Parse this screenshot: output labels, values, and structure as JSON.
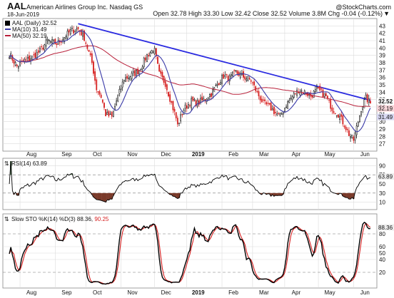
{
  "header": {
    "ticker": "AAL",
    "company": "American Airlines Group Inc.  Nasdaq GS",
    "date": "18-Jun-2019",
    "watermark": "@StockCharts.com",
    "quote": "Open 32.78  High 33.30  Low 32.42  Close 32.52  Volume 3.8M  Chg -0.04 (-0.12%)",
    "change_symbol": "▼"
  },
  "colors": {
    "up": "#000000",
    "down": "#d62020",
    "ma10": "#3a3aa8",
    "ma50": "#b8203a",
    "trendline": "#2a2ae0",
    "rsi": "#000000",
    "rsi_fill": "#7a3a2a",
    "sto_k": "#000000",
    "sto_d": "#d62020",
    "grid": "#dcdcdc"
  },
  "chart_data": [
    {
      "type": "candlestick",
      "panel": "price",
      "legend_title": "AAL (Daily) 32.52",
      "legend": [
        {
          "label": "MA(10) 31.49",
          "color": "#3a3aa8"
        },
        {
          "label": "MA(50) 32.19",
          "color": "#b8203a"
        }
      ],
      "ylim": [
        26,
        44
      ],
      "y_ticks": [
        "27",
        "28",
        "29",
        "30",
        "31",
        "32",
        "33",
        "34",
        "35",
        "36",
        "37",
        "38",
        "39",
        "40",
        "41",
        "42",
        "43"
      ],
      "last_value_labels": [
        "32.52",
        "32.19",
        "31.49"
      ],
      "x_labels": [
        "Aug",
        "Sep",
        "Oct",
        "Nov",
        "Dec",
        "2019",
        "Feb",
        "Mar",
        "Apr",
        "May",
        "Jun"
      ],
      "trendline": {
        "start": {
          "date": "2018-09-24",
          "value": 43.3
        },
        "end": {
          "date": "2019-06-18",
          "value": 32.9
        }
      },
      "anchors_close": [
        [
          "2018-07-23",
          39.2
        ],
        [
          "2018-07-30",
          37.5
        ],
        [
          "2018-08-06",
          38.3
        ],
        [
          "2018-08-13",
          38.7
        ],
        [
          "2018-08-20",
          39.6
        ],
        [
          "2018-08-27",
          41.0
        ],
        [
          "2018-09-04",
          40.6
        ],
        [
          "2018-09-10",
          41.3
        ],
        [
          "2018-09-17",
          42.3
        ],
        [
          "2018-09-24",
          42.6
        ],
        [
          "2018-09-28",
          41.4
        ],
        [
          "2018-10-05",
          38.0
        ],
        [
          "2018-10-10",
          34.5
        ],
        [
          "2018-10-15",
          33.4
        ],
        [
          "2018-10-18",
          31.0
        ],
        [
          "2018-10-24",
          30.6
        ],
        [
          "2018-10-29",
          32.8
        ],
        [
          "2018-11-05",
          35.8
        ],
        [
          "2018-11-12",
          36.3
        ],
        [
          "2018-11-19",
          37.0
        ],
        [
          "2018-11-26",
          39.0
        ],
        [
          "2018-11-30",
          39.8
        ],
        [
          "2018-12-03",
          39.6
        ],
        [
          "2018-12-06",
          36.5
        ],
        [
          "2018-12-12",
          35.2
        ],
        [
          "2018-12-18",
          32.5
        ],
        [
          "2018-12-21",
          30.5
        ],
        [
          "2018-12-24",
          29.5
        ],
        [
          "2018-12-28",
          31.7
        ],
        [
          "2019-01-04",
          32.8
        ],
        [
          "2019-01-10",
          32.5
        ],
        [
          "2019-01-16",
          33.0
        ],
        [
          "2019-01-23",
          33.8
        ],
        [
          "2019-01-30",
          35.4
        ],
        [
          "2019-02-04",
          36.2
        ],
        [
          "2019-02-08",
          35.9
        ],
        [
          "2019-02-14",
          36.7
        ],
        [
          "2019-02-21",
          36.1
        ],
        [
          "2019-02-28",
          35.6
        ],
        [
          "2019-03-06",
          33.9
        ],
        [
          "2019-03-12",
          32.5
        ],
        [
          "2019-03-18",
          32.0
        ],
        [
          "2019-03-22",
          31.2
        ],
        [
          "2019-03-27",
          30.7
        ],
        [
          "2019-04-02",
          32.3
        ],
        [
          "2019-04-08",
          33.4
        ],
        [
          "2019-04-12",
          34.3
        ],
        [
          "2019-04-18",
          34.0
        ],
        [
          "2019-04-24",
          33.5
        ],
        [
          "2019-04-30",
          34.3
        ],
        [
          "2019-05-03",
          34.0
        ],
        [
          "2019-05-08",
          33.4
        ],
        [
          "2019-05-14",
          31.8
        ],
        [
          "2019-05-20",
          31.0
        ],
        [
          "2019-05-24",
          29.6
        ],
        [
          "2019-05-29",
          28.3
        ],
        [
          "2019-06-03",
          27.5
        ],
        [
          "2019-06-06",
          30.0
        ],
        [
          "2019-06-10",
          31.8
        ],
        [
          "2019-06-13",
          33.2
        ],
        [
          "2019-06-18",
          32.52
        ]
      ]
    },
    {
      "type": "line",
      "panel": "rsi",
      "legend_title": "RSI(14) 63.89",
      "ylim": [
        0,
        100
      ],
      "y_ticks": [
        "10",
        "30",
        "50",
        "70",
        "90"
      ],
      "last_value_label": "63.89",
      "overbought": 70,
      "oversold": 30
    },
    {
      "type": "line",
      "panel": "stochastic",
      "legend_title": "Slow STO %K(14) %D(3) 88.36, 90.25",
      "legend_parts": [
        {
          "label": "Slow STO %K(14) %D(3) 88.36,",
          "color": "#000000"
        },
        {
          "label": " 90.25",
          "color": "#d62020"
        }
      ],
      "ylim": [
        0,
        100
      ],
      "y_ticks": [
        "20",
        "40",
        "50",
        "60",
        "80"
      ],
      "last_value_label": "88.36",
      "upper": 80,
      "lower": 20
    }
  ]
}
